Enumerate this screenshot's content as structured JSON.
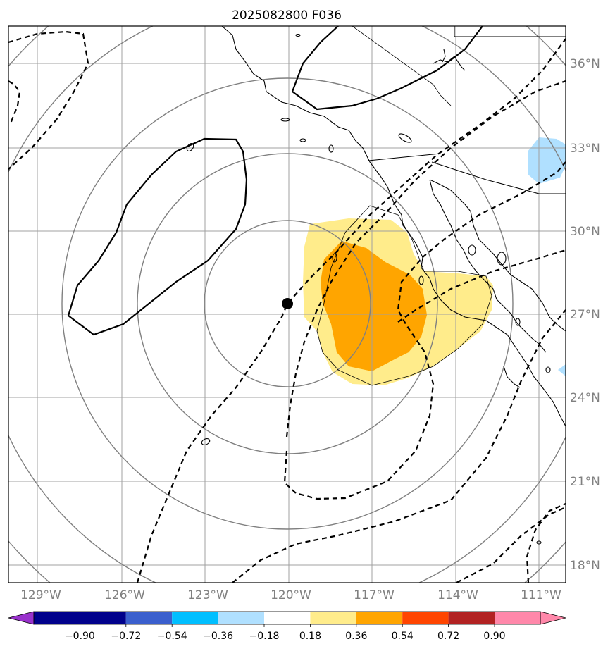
{
  "map": {
    "title": "2025082800 F036",
    "lat_labels": [
      "36°N",
      "33°N",
      "30°N",
      "27°N",
      "24°N",
      "21°N",
      "18°N"
    ],
    "lon_labels": [
      "129°W",
      "126°W",
      "123°W",
      "120°W",
      "117°W",
      "114°W",
      "111°W"
    ],
    "center_marker": {
      "lat": 27.3,
      "lon": -120.0
    },
    "colors": {
      "light_yellow": "#ffec8b",
      "orange": "#ffa500",
      "light_blue": "#b0e0ff",
      "grid": "#a0a0a0",
      "rings": "#808080"
    }
  },
  "colorbar": {
    "ticks": [
      "−0.90",
      "−0.72",
      "−0.54",
      "−0.36",
      "−0.18",
      "0.18",
      "0.36",
      "0.54",
      "0.72",
      "0.90"
    ],
    "colors": [
      "#9932cc",
      "#00008b",
      "#3a5fcd",
      "#00bfff",
      "#b0e0ff",
      "#ffffff",
      "#ffec8b",
      "#ffa500",
      "#ff4500",
      "#b22222",
      "#ff88aa"
    ]
  }
}
